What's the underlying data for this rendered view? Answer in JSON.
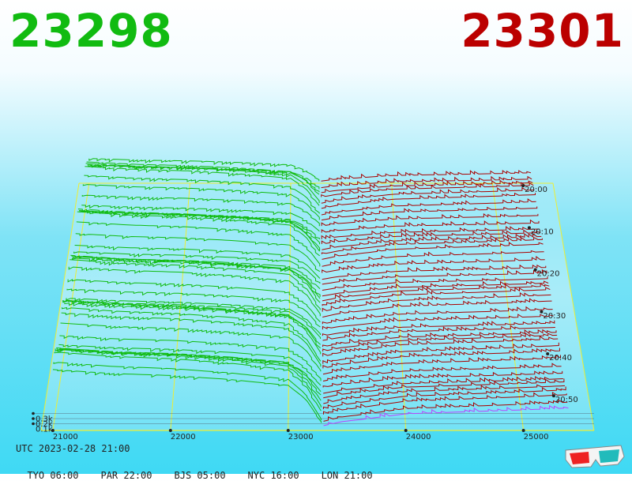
{
  "header": {
    "bid_price": "23298",
    "ask_price": "23301",
    "bid_color": "#11bb11",
    "ask_color": "#bb0000"
  },
  "footer": {
    "utc": "UTC 2023-02-28 21:00",
    "zones": [
      "TYO 06:00",
      "PAR 22:00",
      "BJS 05:00",
      "NYC 16:00",
      "LON 21:00"
    ]
  },
  "icons": {
    "glasses": "3d-glasses-icon"
  },
  "chart_data": {
    "type": "line",
    "title": "",
    "xlabel": "",
    "ylabel": "",
    "x_ticks": [
      21000,
      22000,
      23000,
      24000,
      25000
    ],
    "x_tick_labels": [
      "21000",
      "22000",
      "23000",
      "24000",
      "25000"
    ],
    "xlim": [
      20900,
      25600
    ],
    "time_labels": [
      "20:00",
      "20:10",
      "20:20",
      "20:30",
      "20:40",
      "20:50"
    ],
    "volume_labels": [
      "0.3k",
      "0.2k",
      "0.1k"
    ],
    "mid_price": 23300,
    "grid": true,
    "colors": {
      "bid": "#11bb11",
      "ask": "#aa0000",
      "grid": "#eeee33",
      "latest": "#bb44ff"
    },
    "series": [
      {
        "name": "bid",
        "x": [
          21000,
          21500,
          22000,
          22500,
          23000,
          23150,
          23298
        ],
        "values": [
          0.3,
          0.28,
          0.27,
          0.25,
          0.22,
          0.15,
          0.02
        ]
      },
      {
        "name": "ask",
        "x": [
          23301,
          23450,
          23600,
          24000,
          24500,
          25000,
          25400
        ],
        "values": [
          0.02,
          0.04,
          0.05,
          0.08,
          0.09,
          0.1,
          0.11
        ]
      }
    ]
  }
}
